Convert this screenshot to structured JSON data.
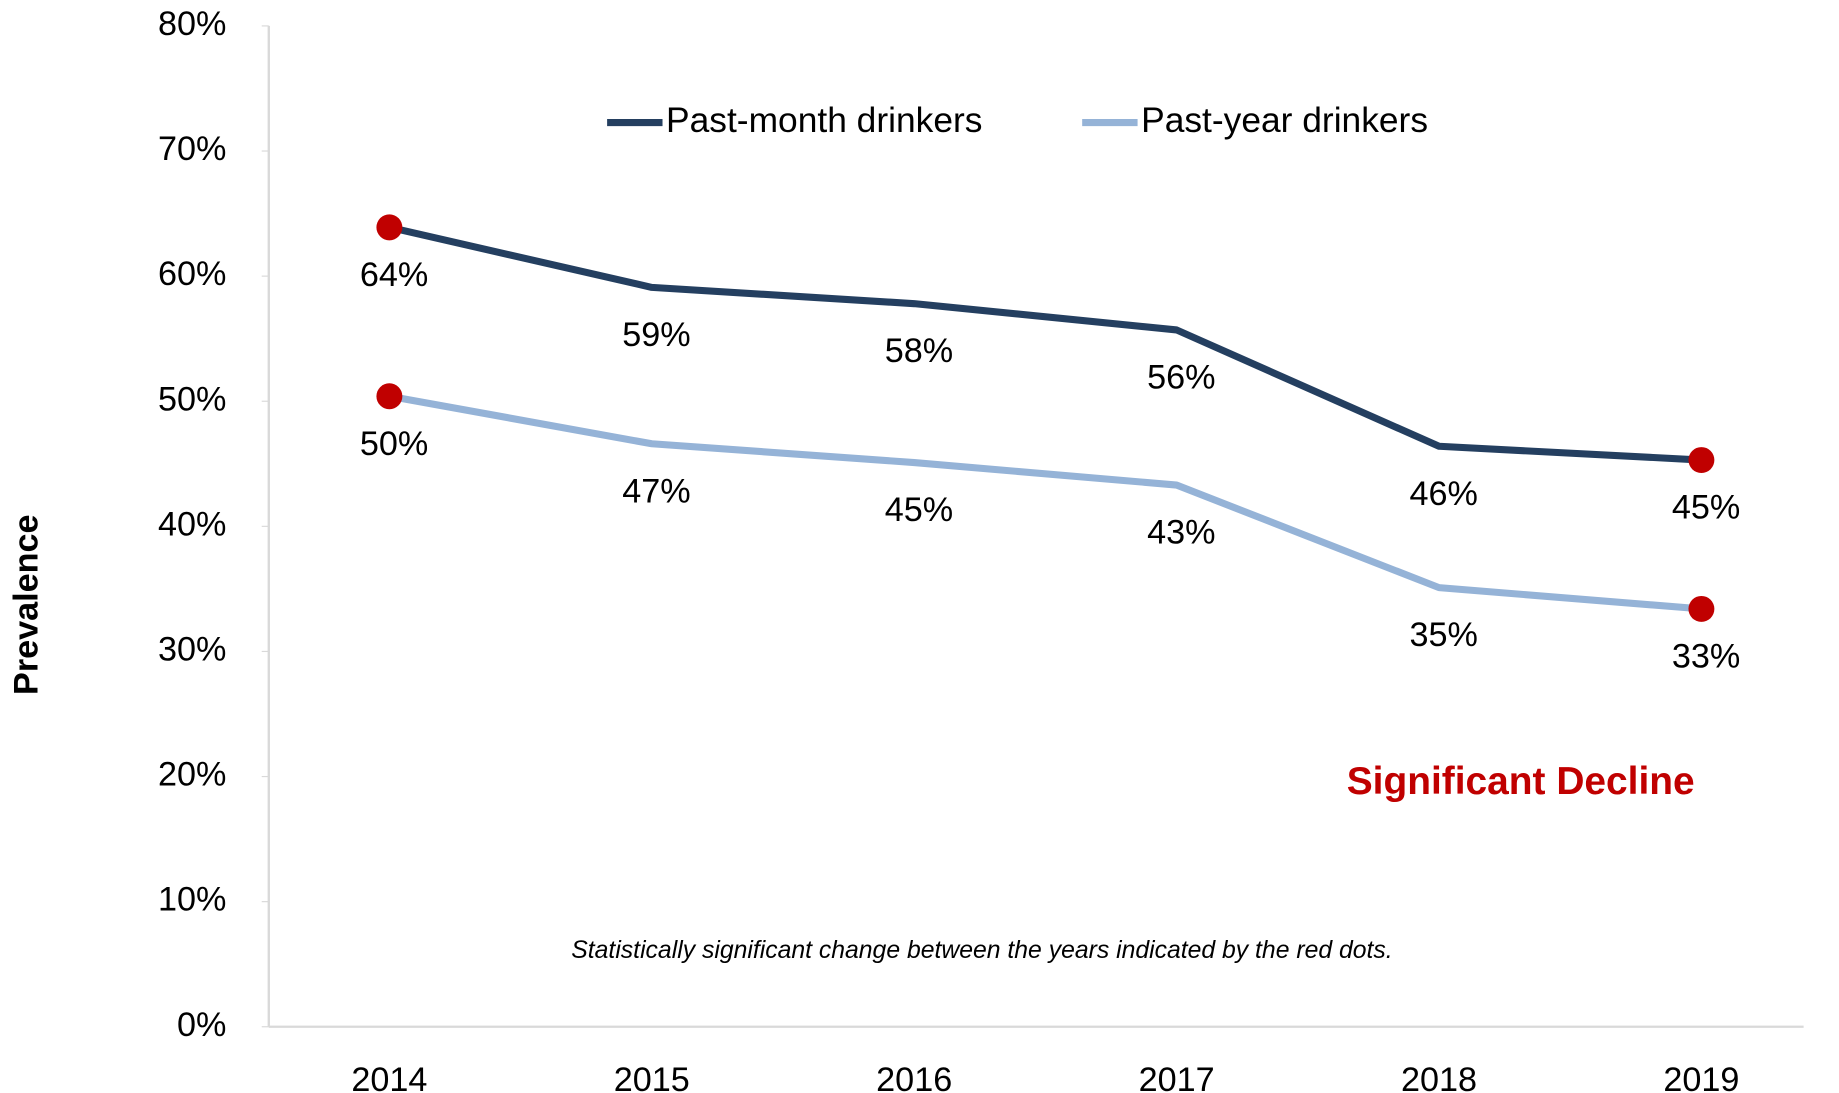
{
  "chart_data": {
    "type": "line",
    "y_axis_label": "Prevalence",
    "categories": [
      "2014",
      "2015",
      "2016",
      "2017",
      "2018",
      "2019"
    ],
    "series": [
      {
        "name": "Past-month drinkers",
        "color": "#243f60",
        "values": [
          63.9,
          59.1,
          57.8,
          55.7,
          46.4,
          45.3
        ],
        "value_labels": [
          "64%",
          "59%",
          "58%",
          "56%",
          "46%",
          "45%"
        ],
        "significant": [
          true,
          false,
          false,
          false,
          false,
          true
        ]
      },
      {
        "name": "Past-year drinkers",
        "color": "#95b3d7",
        "values": [
          50.4,
          46.6,
          45.1,
          43.3,
          35.1,
          33.4
        ],
        "value_labels": [
          "50%",
          "47%",
          "45%",
          "43%",
          "35%",
          "33%"
        ],
        "significant": [
          true,
          false,
          false,
          false,
          false,
          true
        ]
      }
    ],
    "marker_color": "#c00000",
    "ylim": [
      0,
      80
    ],
    "yticks": [
      {
        "value": 0,
        "label": "0%"
      },
      {
        "value": 10,
        "label": "10%"
      },
      {
        "value": 20,
        "label": "20%"
      },
      {
        "value": 30,
        "label": "30%"
      },
      {
        "value": 40,
        "label": "40%"
      },
      {
        "value": 50,
        "label": "50%"
      },
      {
        "value": 60,
        "label": "60%"
      },
      {
        "value": 70,
        "label": "70%"
      },
      {
        "value": 80,
        "label": "80%"
      }
    ],
    "legend": "top",
    "annotations": [
      "Significant Decline",
      "Statistically significant change between the years indicated by the red dots."
    ]
  }
}
